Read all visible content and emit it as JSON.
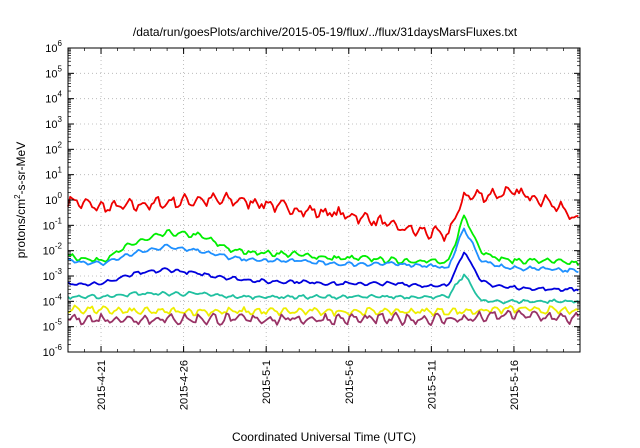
{
  "chart_data": {
    "type": "line",
    "title": "/data/run/goesPlots/archive/2015-05-19/flux/../flux/31daysMarsFluxes.txt",
    "xlabel": "Coordinated Universal Time (UTC)",
    "ylabel": {
      "prefix": "protons/cm",
      "sup": "2",
      "suffix": "-s-sr-MeV"
    },
    "xlim": [
      "2015-04-19",
      "2015-05-20"
    ],
    "ylim": [
      1e-06,
      1000000.0
    ],
    "yscale": "log",
    "grid": true,
    "legend": "none",
    "xticks": [
      "2015-4-21",
      "2015-4-26",
      "2015-5-1",
      "2015-5-6",
      "2015-5-11",
      "2015-5-16"
    ],
    "xtick_dates": [
      "2015-04-21",
      "2015-04-26",
      "2015-05-01",
      "2015-05-06",
      "2015-05-11",
      "2015-05-16"
    ],
    "yticks": [
      {
        "base": "10",
        "exp": "6"
      },
      {
        "base": "10",
        "exp": "5"
      },
      {
        "base": "10",
        "exp": "4"
      },
      {
        "base": "10",
        "exp": "3"
      },
      {
        "base": "10",
        "exp": "2"
      },
      {
        "base": "10",
        "exp": "1"
      },
      {
        "base": "10",
        "exp": "0"
      },
      {
        "base": "10",
        "exp": "-1"
      },
      {
        "base": "10",
        "exp": "-2"
      },
      {
        "base": "10",
        "exp": "-3"
      },
      {
        "base": "10",
        "exp": "-4"
      },
      {
        "base": "10",
        "exp": "-5"
      },
      {
        "base": "10",
        "exp": "-6"
      }
    ],
    "ytick_values": [
      1000000.0,
      100000.0,
      10000.0,
      1000.0,
      100.0,
      10.0,
      1,
      0.1,
      0.01,
      0.001,
      0.0001,
      1e-05,
      1e-06
    ],
    "series": [
      {
        "color": "#ee0000",
        "x": [
          "2015-04-19",
          "2015-04-21",
          "2015-04-23",
          "2015-04-25",
          "2015-04-27",
          "2015-04-29",
          "2015-05-01",
          "2015-05-03",
          "2015-05-05",
          "2015-05-07",
          "2015-05-09",
          "2015-05-11",
          "2015-05-12",
          "2015-05-13",
          "2015-05-14",
          "2015-05-16",
          "2015-05-18",
          "2015-05-20"
        ],
        "y": [
          1.0,
          0.5,
          0.6,
          0.8,
          1.0,
          1.0,
          0.7,
          0.4,
          0.3,
          0.2,
          0.08,
          0.05,
          0.04,
          1.5,
          1.5,
          2.0,
          1.0,
          0.15
        ]
      },
      {
        "color": "#00ee00",
        "x": [
          "2015-04-19",
          "2015-04-21",
          "2015-04-23",
          "2015-04-25",
          "2015-04-27",
          "2015-04-29",
          "2015-05-01",
          "2015-05-03",
          "2015-05-05",
          "2015-05-07",
          "2015-05-09",
          "2015-05-11",
          "2015-05-12",
          "2015-05-13",
          "2015-05-14",
          "2015-05-15",
          "2015-05-16",
          "2015-05-18",
          "2015-05-20"
        ],
        "y": [
          0.006,
          0.004,
          0.02,
          0.05,
          0.04,
          0.01,
          0.008,
          0.007,
          0.005,
          0.005,
          0.004,
          0.004,
          0.003,
          0.25,
          0.01,
          0.005,
          0.004,
          0.004,
          0.003
        ]
      },
      {
        "color": "#1e90ff",
        "x": [
          "2015-04-19",
          "2015-04-21",
          "2015-04-23",
          "2015-04-25",
          "2015-04-27",
          "2015-04-29",
          "2015-05-01",
          "2015-05-03",
          "2015-05-05",
          "2015-05-07",
          "2015-05-09",
          "2015-05-11",
          "2015-05-12",
          "2015-05-13",
          "2015-05-14",
          "2015-05-15",
          "2015-05-16",
          "2015-05-18",
          "2015-05-20"
        ],
        "y": [
          0.004,
          0.003,
          0.008,
          0.015,
          0.01,
          0.005,
          0.004,
          0.004,
          0.003,
          0.003,
          0.003,
          0.0025,
          0.002,
          0.08,
          0.004,
          0.0025,
          0.002,
          0.002,
          0.0015
        ]
      },
      {
        "color": "#0000dd",
        "x": [
          "2015-04-19",
          "2015-04-21",
          "2015-04-23",
          "2015-04-25",
          "2015-04-27",
          "2015-04-29",
          "2015-05-01",
          "2015-05-03",
          "2015-05-05",
          "2015-05-07",
          "2015-05-09",
          "2015-05-11",
          "2015-05-12",
          "2015-05-13",
          "2015-05-14",
          "2015-05-15",
          "2015-05-16",
          "2015-05-18",
          "2015-05-20"
        ],
        "y": [
          0.0005,
          0.0005,
          0.0012,
          0.0018,
          0.0012,
          0.0008,
          0.0006,
          0.0006,
          0.0005,
          0.0005,
          0.0005,
          0.0004,
          0.0004,
          0.01,
          0.0006,
          0.0004,
          0.00035,
          0.0003,
          0.0003
        ]
      },
      {
        "color": "#20c0a0",
        "x": [
          "2015-04-19",
          "2015-04-21",
          "2015-04-23",
          "2015-04-25",
          "2015-04-27",
          "2015-04-29",
          "2015-05-01",
          "2015-05-03",
          "2015-05-05",
          "2015-05-07",
          "2015-05-09",
          "2015-05-11",
          "2015-05-12",
          "2015-05-13",
          "2015-05-14",
          "2015-05-15",
          "2015-05-16",
          "2015-05-18",
          "2015-05-20"
        ],
        "y": [
          0.00015,
          0.00015,
          0.0002,
          0.0002,
          0.0002,
          0.00015,
          0.00015,
          0.00015,
          0.00015,
          0.00015,
          0.00015,
          0.00015,
          0.00015,
          0.0012,
          0.0001,
          0.0001,
          0.0001,
          0.0001,
          0.0001
        ]
      },
      {
        "color": "#eeee00",
        "x": [
          "2015-04-19",
          "2015-04-23",
          "2015-04-27",
          "2015-05-01",
          "2015-05-05",
          "2015-05-09",
          "2015-05-13",
          "2015-05-16",
          "2015-05-20"
        ],
        "y": [
          5e-05,
          4e-05,
          4e-05,
          4e-05,
          4e-05,
          4e-05,
          4e-05,
          5e-05,
          4e-05
        ]
      },
      {
        "color": "#993366",
        "x": [
          "2015-04-19",
          "2015-04-23",
          "2015-04-27",
          "2015-05-01",
          "2015-05-05",
          "2015-05-09",
          "2015-05-13",
          "2015-05-16",
          "2015-05-20"
        ],
        "y": [
          2e-05,
          2e-05,
          2e-05,
          2e-05,
          2e-05,
          2e-05,
          2e-05,
          3e-05,
          2e-05
        ]
      }
    ]
  }
}
